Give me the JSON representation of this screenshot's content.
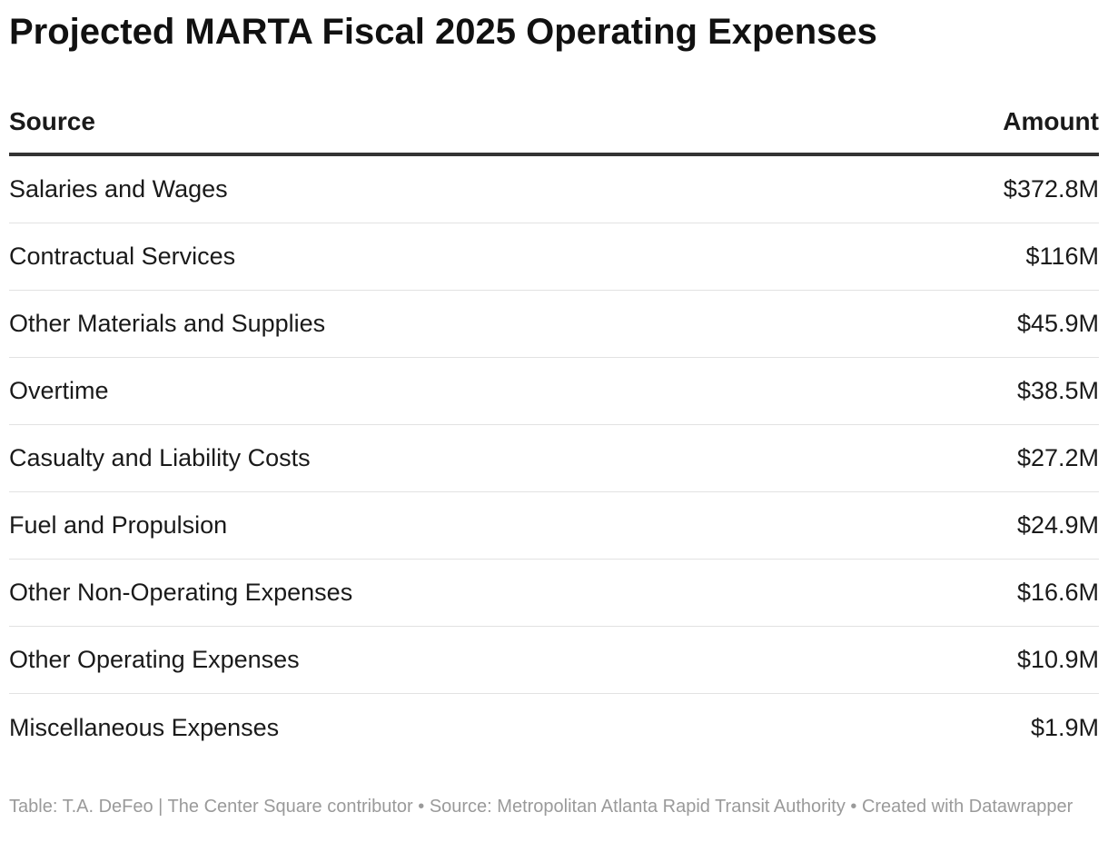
{
  "chart_data": {
    "type": "table",
    "title": "Projected MARTA Fiscal 2025 Operating Expenses",
    "columns": [
      "Source",
      "Amount"
    ],
    "rows": [
      {
        "source": "Salaries and Wages",
        "amount": "$372.8M",
        "value_millions": 372.8
      },
      {
        "source": "Contractual Services",
        "amount": "$116M",
        "value_millions": 116
      },
      {
        "source": "Other Materials and Supplies",
        "amount": "$45.9M",
        "value_millions": 45.9
      },
      {
        "source": "Overtime",
        "amount": "$38.5M",
        "value_millions": 38.5
      },
      {
        "source": "Casualty and Liability Costs",
        "amount": "$27.2M",
        "value_millions": 27.2
      },
      {
        "source": "Fuel and Propulsion",
        "amount": "$24.9M",
        "value_millions": 24.9
      },
      {
        "source": "Other Non-Operating Expenses",
        "amount": "$16.6M",
        "value_millions": 16.6
      },
      {
        "source": "Other Operating Expenses",
        "amount": "$10.9M",
        "value_millions": 10.9
      },
      {
        "source": "Miscellaneous Expenses",
        "amount": "$1.9M",
        "value_millions": 1.9
      }
    ],
    "footer": "Table: T.A. DeFeo | The Center Square contributor • Source: Metropolitan Atlanta Rapid Transit Authority • Created with Datawrapper"
  }
}
